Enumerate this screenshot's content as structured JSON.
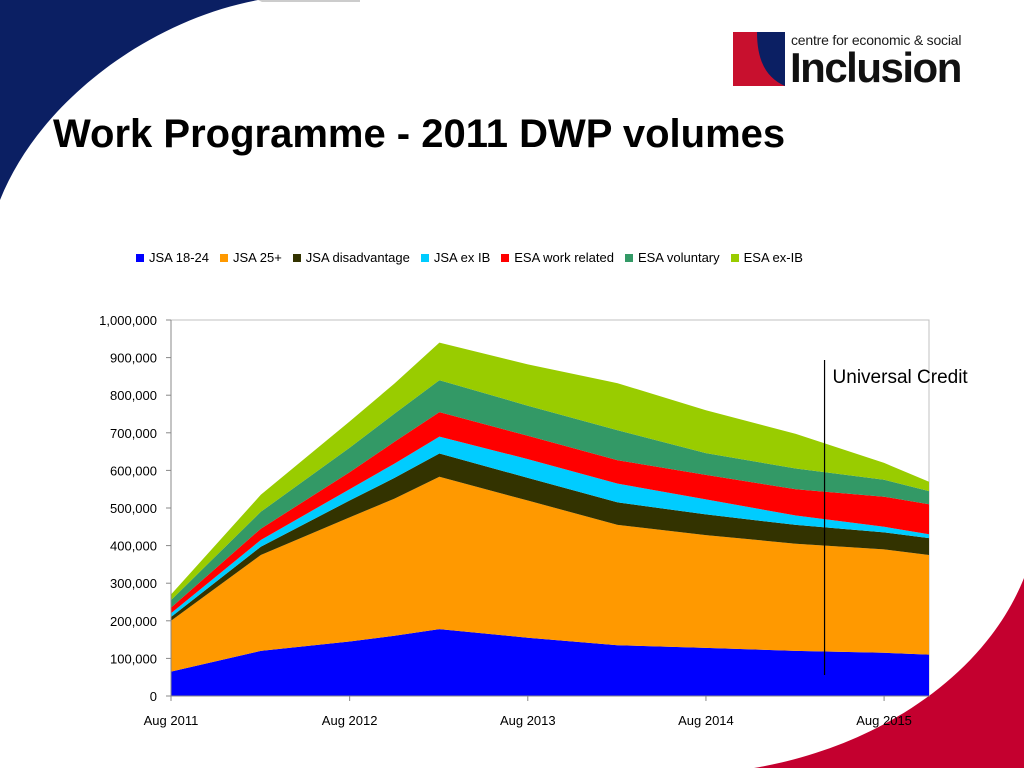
{
  "slide": {
    "title": "Work Programme - 2011 DWP volumes"
  },
  "logo": {
    "line1": "centre for economic & social",
    "line2": "Inclusion",
    "colors": {
      "red": "#c8102e",
      "navy": "#0b1f63"
    }
  },
  "theme": {
    "navy": "#0b1f63",
    "crimson": "#c4002f"
  },
  "chart_data": {
    "type": "area",
    "stacked": true,
    "x": [
      "Aug 2011",
      "Feb 2012",
      "Aug 2012",
      "Nov 2012",
      "Feb 2013",
      "Aug 2013",
      "Feb 2014",
      "Aug 2014",
      "Feb 2015",
      "Aug 2015",
      "Nov 2015"
    ],
    "x_tick_labels": [
      "Aug 2011",
      "Aug 2012",
      "Aug 2013",
      "Aug 2014",
      "Aug 2015"
    ],
    "ylim": [
      0,
      1000000
    ],
    "y_tick_labels": [
      "0",
      "100,000",
      "200,000",
      "300,000",
      "400,000",
      "500,000",
      "600,000",
      "700,000",
      "800,000",
      "900,000",
      "1,000,000"
    ],
    "series": [
      {
        "name": "JSA 18-24",
        "color": "#0000ff",
        "values": [
          65000,
          120000,
          145000,
          160000,
          178000,
          155000,
          135000,
          128000,
          120000,
          115000,
          110000
        ]
      },
      {
        "name": "JSA 25+",
        "color": "#ff9900",
        "values": [
          135000,
          255000,
          330000,
          365000,
          405000,
          365000,
          320000,
          300000,
          285000,
          275000,
          265000
        ]
      },
      {
        "name": "JSA disadvantage",
        "color": "#333300",
        "values": [
          10000,
          22000,
          45000,
          55000,
          62000,
          60000,
          60000,
          55000,
          50000,
          45000,
          45000
        ]
      },
      {
        "name": "JSA ex IB",
        "color": "#00ccff",
        "values": [
          10000,
          18000,
          30000,
          38000,
          45000,
          50000,
          50000,
          40000,
          25000,
          15000,
          10000
        ]
      },
      {
        "name": "ESA work related",
        "color": "#ff0000",
        "values": [
          15000,
          30000,
          45000,
          58000,
          65000,
          62000,
          62000,
          65000,
          70000,
          80000,
          80000
        ]
      },
      {
        "name": "ESA voluntary",
        "color": "#339966",
        "values": [
          20000,
          45000,
          65000,
          75000,
          85000,
          80000,
          80000,
          58000,
          55000,
          45000,
          35000
        ]
      },
      {
        "name": "ESA ex-IB",
        "color": "#99cc00",
        "values": [
          15000,
          45000,
          70000,
          80000,
          100000,
          110000,
          125000,
          114000,
          92000,
          45000,
          25000
        ]
      }
    ],
    "annotation": {
      "text": "Universal Credit",
      "x": "Apr 2015"
    },
    "grid": false,
    "legend_position": "top"
  }
}
